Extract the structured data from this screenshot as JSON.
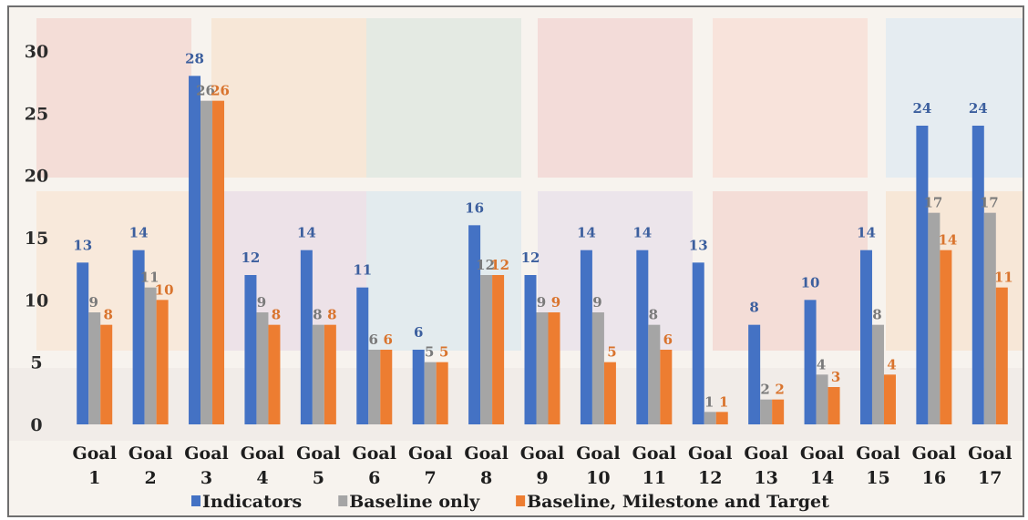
{
  "chart_data": {
    "type": "bar",
    "title": "",
    "xlabel": "",
    "ylabel": "",
    "ylim": [
      0,
      30
    ],
    "yticks": [
      0,
      5,
      10,
      15,
      20,
      25,
      30
    ],
    "grid": false,
    "legend_position": "bottom",
    "categories": [
      [
        "Goal",
        "1"
      ],
      [
        "Goal",
        "2"
      ],
      [
        "Goal",
        "3"
      ],
      [
        "Goal",
        "4"
      ],
      [
        "Goal",
        "5"
      ],
      [
        "Goal",
        "6"
      ],
      [
        "Goal",
        "7"
      ],
      [
        "Goal",
        "8"
      ],
      [
        "Goal",
        "9"
      ],
      [
        "Goal",
        "10"
      ],
      [
        "Goal",
        "11"
      ],
      [
        "Goal",
        "12"
      ],
      [
        "Goal",
        "13"
      ],
      [
        "Goal",
        "14"
      ],
      [
        "Goal",
        "15"
      ],
      [
        "Goal",
        "16"
      ],
      [
        "Goal",
        "17"
      ]
    ],
    "series": [
      {
        "name": "Indicators",
        "color": "#4472c4",
        "label_color": "#3c5f9e",
        "values": [
          13,
          14,
          28,
          12,
          14,
          11,
          6,
          16,
          12,
          14,
          14,
          13,
          8,
          10,
          14,
          24,
          24
        ]
      },
      {
        "name": "Baseline only",
        "color": "#a5a5a5",
        "label_color": "#7a7a7a",
        "values": [
          9,
          11,
          26,
          9,
          8,
          6,
          5,
          12,
          9,
          9,
          8,
          1,
          2,
          4,
          8,
          17,
          17
        ]
      },
      {
        "name": "Baseline, Milestone and Target",
        "color": "#ed7d31",
        "label_color": "#d9742e",
        "values": [
          8,
          10,
          26,
          8,
          8,
          6,
          5,
          12,
          9,
          5,
          6,
          1,
          2,
          3,
          4,
          14,
          11
        ]
      }
    ]
  },
  "background": {
    "tile_colors": [
      "#f3d6cf",
      "#f7e3cf",
      "#dde7df",
      "#f2d4d2",
      "#f8ddd4",
      "#dfe9f2",
      "#f8e6d4",
      "#e9dce6",
      "#dce8ee",
      "#e8e0ea"
    ]
  }
}
